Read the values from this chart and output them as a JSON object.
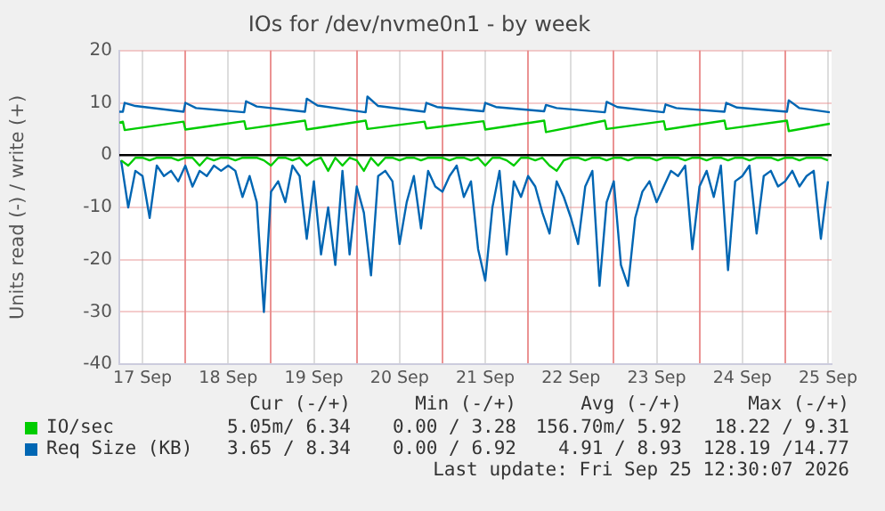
{
  "chart_data": {
    "type": "line",
    "title": "IOs for /dev/nvme0n1 - by week",
    "ylabel": "Units read (-) / write (+)",
    "xlim": [
      "2026-09-17T05:30",
      "2026-09-25T13:00"
    ],
    "xticks": [
      {
        "value": "2026-09-17T12:00",
        "label": "17 Sep"
      },
      {
        "value": "2026-09-18T00:00",
        "label": null
      },
      {
        "value": "2026-09-18T12:00",
        "label": "18 Sep"
      },
      {
        "value": "2026-09-19T00:00",
        "label": null
      },
      {
        "value": "2026-09-19T12:00",
        "label": "19 Sep"
      },
      {
        "value": "2026-09-20T00:00",
        "label": null
      },
      {
        "value": "2026-09-20T12:00",
        "label": "20 Sep"
      },
      {
        "value": "2026-09-21T00:00",
        "label": null
      },
      {
        "value": "2026-09-21T12:00",
        "label": "21 Sep"
      },
      {
        "value": "2026-09-22T00:00",
        "label": null
      },
      {
        "value": "2026-09-22T12:00",
        "label": "22 Sep"
      },
      {
        "value": "2026-09-23T00:00",
        "label": null
      },
      {
        "value": "2026-09-23T12:00",
        "label": "23 Sep"
      },
      {
        "value": "2026-09-24T00:00",
        "label": null
      },
      {
        "value": "2026-09-24T12:00",
        "label": "24 Sep"
      },
      {
        "value": "2026-09-25T00:00",
        "label": null
      },
      {
        "value": "2026-09-25T12:00",
        "label": "25 Sep"
      }
    ],
    "ylim": [
      -40,
      20
    ],
    "yticks": [
      -40,
      -30,
      -20,
      -10,
      0,
      10,
      20
    ],
    "grid": true,
    "legend": "bottom",
    "marker": "none",
    "line_style": "solid",
    "ref_lines": [
      {
        "axis": "y",
        "value": 0,
        "color": "#000000"
      }
    ],
    "x": [
      "2026-09-17T06:00",
      "2026-09-17T08:00",
      "2026-09-17T10:00",
      "2026-09-17T12:00",
      "2026-09-17T14:00",
      "2026-09-17T16:00",
      "2026-09-17T18:00",
      "2026-09-17T20:00",
      "2026-09-17T22:00",
      "2026-09-18T00:00",
      "2026-09-18T02:00",
      "2026-09-18T04:00",
      "2026-09-18T06:00",
      "2026-09-18T08:00",
      "2026-09-18T10:00",
      "2026-09-18T12:00",
      "2026-09-18T14:00",
      "2026-09-18T16:00",
      "2026-09-18T18:00",
      "2026-09-18T20:00",
      "2026-09-18T22:00",
      "2026-09-19T00:00",
      "2026-09-19T02:00",
      "2026-09-19T04:00",
      "2026-09-19T06:00",
      "2026-09-19T08:00",
      "2026-09-19T10:00",
      "2026-09-19T12:00",
      "2026-09-19T14:00",
      "2026-09-19T16:00",
      "2026-09-19T18:00",
      "2026-09-19T20:00",
      "2026-09-19T22:00",
      "2026-09-20T00:00",
      "2026-09-20T02:00",
      "2026-09-20T04:00",
      "2026-09-20T06:00",
      "2026-09-20T08:00",
      "2026-09-20T10:00",
      "2026-09-20T12:00",
      "2026-09-20T14:00",
      "2026-09-20T16:00",
      "2026-09-20T18:00",
      "2026-09-20T20:00",
      "2026-09-20T22:00",
      "2026-09-21T00:00",
      "2026-09-21T02:00",
      "2026-09-21T04:00",
      "2026-09-21T06:00",
      "2026-09-21T08:00",
      "2026-09-21T10:00",
      "2026-09-21T12:00",
      "2026-09-21T14:00",
      "2026-09-21T16:00",
      "2026-09-21T18:00",
      "2026-09-21T20:00",
      "2026-09-21T22:00",
      "2026-09-22T00:00",
      "2026-09-22T02:00",
      "2026-09-22T04:00",
      "2026-09-22T06:00",
      "2026-09-22T08:00",
      "2026-09-22T10:00",
      "2026-09-22T12:00",
      "2026-09-22T14:00",
      "2026-09-22T16:00",
      "2026-09-22T18:00",
      "2026-09-22T20:00",
      "2026-09-22T22:00",
      "2026-09-23T00:00",
      "2026-09-23T02:00",
      "2026-09-23T04:00",
      "2026-09-23T06:00",
      "2026-09-23T08:00",
      "2026-09-23T10:00",
      "2026-09-23T12:00",
      "2026-09-23T14:00",
      "2026-09-23T16:00",
      "2026-09-23T18:00",
      "2026-09-23T20:00",
      "2026-09-23T22:00",
      "2026-09-24T00:00",
      "2026-09-24T02:00",
      "2026-09-24T04:00",
      "2026-09-24T06:00",
      "2026-09-24T08:00",
      "2026-09-24T10:00",
      "2026-09-24T12:00",
      "2026-09-24T14:00",
      "2026-09-24T16:00",
      "2026-09-24T18:00",
      "2026-09-24T20:00",
      "2026-09-24T22:00",
      "2026-09-25T00:00",
      "2026-09-25T02:00",
      "2026-09-25T04:00",
      "2026-09-25T06:00",
      "2026-09-25T08:00",
      "2026-09-25T10:00",
      "2026-09-25T12:00"
    ],
    "series": [
      {
        "color": "#00cc00",
        "values": [
          -1,
          -2,
          -0.5,
          -0.5,
          -1,
          -0.5,
          -0.5,
          -0.5,
          -1,
          -0.5,
          -0.5,
          -2,
          -0.5,
          -1,
          -0.5,
          -0.5,
          -1,
          -0.5,
          -0.5,
          -0.5,
          -1,
          -2,
          -0.5,
          -0.5,
          -1,
          -0.5,
          -2,
          -1,
          -0.5,
          -3,
          -0.5,
          -2,
          -0.5,
          -1,
          -3,
          -0.5,
          -2,
          -0.5,
          -0.5,
          -1,
          -0.5,
          -0.5,
          -1,
          -0.5,
          -0.5,
          -0.5,
          -1,
          -0.5,
          -0.5,
          -1,
          -0.5,
          -2,
          -0.5,
          -0.5,
          -1,
          -2,
          -0.5,
          -0.5,
          -1,
          -0.5,
          -2,
          -3,
          -1,
          -0.5,
          -0.5,
          -1,
          -0.5,
          -0.5,
          -1,
          -0.5,
          -0.5,
          -1,
          -0.5,
          -0.5,
          -0.5,
          -1,
          -0.5,
          -0.5,
          -0.5,
          -1,
          -0.5,
          -0.5,
          -1,
          -0.5,
          -0.5,
          -1,
          -0.5,
          -0.5,
          -1,
          -0.5,
          -0.5,
          -0.5,
          -1,
          -0.5,
          -0.5,
          -1,
          -0.5,
          -0.5,
          -0.5,
          -1
        ]
      },
      {
        "color": "#0066b3",
        "values": [
          -1,
          -10,
          -3,
          -4,
          -12,
          -2,
          -4,
          -3,
          -5,
          -2,
          -6,
          -3,
          -4,
          -2,
          -3,
          -2,
          -3,
          -8,
          -4,
          -9,
          -30,
          -7,
          -5,
          -9,
          -2,
          -4,
          -16,
          -5,
          -19,
          -10,
          -21,
          -3,
          -19,
          -6,
          -11,
          -23,
          -4,
          -3,
          -5,
          -17,
          -9,
          -4,
          -14,
          -3,
          -6,
          -7,
          -4,
          -2,
          -8,
          -5,
          -18,
          -24,
          -10,
          -3,
          -19,
          -5,
          -8,
          -4,
          -6,
          -11,
          -15,
          -5,
          -8,
          -12,
          -17,
          -6,
          -3,
          -25,
          -9,
          -5,
          -21,
          -25,
          -12,
          -7,
          -5,
          -9,
          -6,
          -3,
          -4,
          -2,
          -18,
          -6,
          -3,
          -8,
          -2,
          -22,
          -5,
          -4,
          -2,
          -15,
          -4,
          -3,
          -6,
          -5,
          -3,
          -6,
          -4,
          -3,
          -16,
          -5
        ]
      },
      {
        "name": "IO/sec",
        "color": "#00cc00",
        "x": [
          "2026-09-17T05:30",
          "2026-09-17T06:30",
          "2026-09-17T07:00",
          "2026-09-17T23:30",
          "2026-09-18T00:00",
          "2026-09-18T16:30",
          "2026-09-18T17:00",
          "2026-09-19T09:30",
          "2026-09-19T10:00",
          "2026-09-20T02:30",
          "2026-09-20T03:00",
          "2026-09-20T19:00",
          "2026-09-20T19:30",
          "2026-09-21T11:30",
          "2026-09-21T12:00",
          "2026-09-22T04:30",
          "2026-09-22T05:00",
          "2026-09-22T21:30",
          "2026-09-22T22:00",
          "2026-09-23T14:00",
          "2026-09-23T14:30",
          "2026-09-24T07:00",
          "2026-09-24T07:30",
          "2026-09-25T00:30",
          "2026-09-25T01:00",
          "2026-09-25T12:30"
        ],
        "values": [
          6.2,
          6.4,
          4.8,
          6.4,
          4.9,
          6.5,
          5.0,
          6.6,
          4.9,
          6.6,
          5.0,
          6.4,
          5.1,
          6.5,
          4.9,
          6.6,
          4.4,
          6.6,
          5.0,
          6.5,
          4.9,
          6.6,
          5.0,
          6.6,
          4.6,
          6.0
        ]
      },
      {
        "name": "Req Size (KB)",
        "color": "#0066b3",
        "x": [
          "2026-09-17T05:30",
          "2026-09-17T06:30",
          "2026-09-17T07:00",
          "2026-09-17T10:00",
          "2026-09-17T23:30",
          "2026-09-18T00:00",
          "2026-09-18T03:00",
          "2026-09-18T16:30",
          "2026-09-18T17:00",
          "2026-09-18T20:00",
          "2026-09-19T09:30",
          "2026-09-19T10:00",
          "2026-09-19T13:00",
          "2026-09-20T02:30",
          "2026-09-20T03:00",
          "2026-09-20T06:00",
          "2026-09-20T19:00",
          "2026-09-20T19:30",
          "2026-09-20T22:30",
          "2026-09-21T11:30",
          "2026-09-21T12:00",
          "2026-09-21T15:00",
          "2026-09-22T04:30",
          "2026-09-22T05:00",
          "2026-09-22T08:00",
          "2026-09-22T21:30",
          "2026-09-22T22:00",
          "2026-09-23T01:00",
          "2026-09-23T14:00",
          "2026-09-23T14:30",
          "2026-09-23T17:30",
          "2026-09-24T07:00",
          "2026-09-24T07:30",
          "2026-09-24T10:30",
          "2026-09-25T00:30",
          "2026-09-25T01:00",
          "2026-09-25T04:00",
          "2026-09-25T12:30"
        ],
        "values": [
          8.3,
          8.3,
          10.0,
          9.4,
          8.3,
          10.0,
          9.0,
          8.2,
          10.3,
          9.3,
          8.3,
          10.8,
          9.5,
          8.2,
          11.2,
          9.4,
          8.3,
          10.0,
          9.2,
          8.4,
          10.0,
          9.2,
          8.4,
          9.6,
          9.0,
          8.2,
          10.2,
          9.2,
          8.2,
          9.7,
          9.0,
          8.3,
          10.0,
          9.1,
          8.3,
          10.5,
          9.0,
          8.2
        ]
      }
    ],
    "annotations": [
      "Cur (-/+)",
      "Min (-/+)",
      "Avg (-/+)",
      "Max (-/+)",
      "5.05m/ 6.34",
      "0.00 / 3.28",
      "156.70m/ 5.92",
      "18.22 / 9.31",
      "3.65 / 8.34",
      "0.00 / 6.92",
      "4.91 / 8.93",
      "128.19 /14.77",
      "Last update: Fri Sep 25 12:30:07 2026"
    ]
  }
}
